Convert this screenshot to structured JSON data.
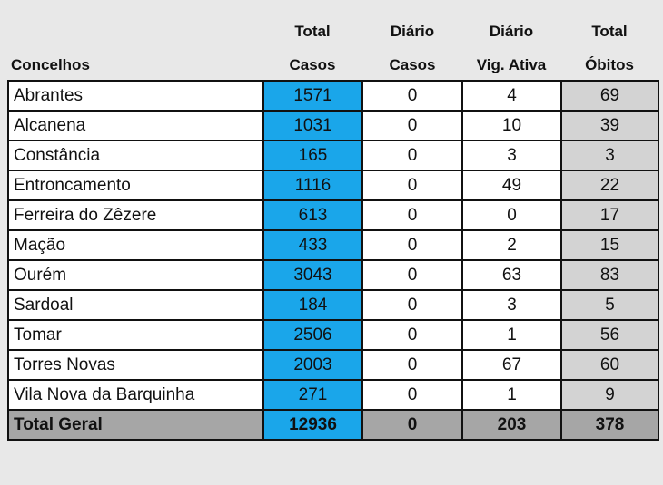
{
  "headers": {
    "concelhos": "Concelhos",
    "total_casos_1": "Total",
    "total_casos_2": "Casos",
    "diario_casos_1": "Diário",
    "diario_casos_2": "Casos",
    "diario_vig_1": "Diário",
    "diario_vig_2": "Vig. Ativa",
    "total_obitos_1": "Total",
    "total_obitos_2": "Óbitos"
  },
  "rows": [
    {
      "name": "Abrantes",
      "total_casos": "1571",
      "diario_casos": "0",
      "diario_vig": "4",
      "total_obitos": "69"
    },
    {
      "name": "Alcanena",
      "total_casos": "1031",
      "diario_casos": "0",
      "diario_vig": "10",
      "total_obitos": "39"
    },
    {
      "name": "Constância",
      "total_casos": "165",
      "diario_casos": "0",
      "diario_vig": "3",
      "total_obitos": "3"
    },
    {
      "name": "Entroncamento",
      "total_casos": "1116",
      "diario_casos": "0",
      "diario_vig": "49",
      "total_obitos": "22"
    },
    {
      "name": "Ferreira do Zêzere",
      "total_casos": "613",
      "diario_casos": "0",
      "diario_vig": "0",
      "total_obitos": "17"
    },
    {
      "name": "Mação",
      "total_casos": "433",
      "diario_casos": "0",
      "diario_vig": "2",
      "total_obitos": "15"
    },
    {
      "name": "Ourém",
      "total_casos": "3043",
      "diario_casos": "0",
      "diario_vig": "63",
      "total_obitos": "83"
    },
    {
      "name": "Sardoal",
      "total_casos": "184",
      "diario_casos": "0",
      "diario_vig": "3",
      "total_obitos": "5"
    },
    {
      "name": "Tomar",
      "total_casos": "2506",
      "diario_casos": "0",
      "diario_vig": "1",
      "total_obitos": "56"
    },
    {
      "name": "Torres Novas",
      "total_casos": "2003",
      "diario_casos": "0",
      "diario_vig": "67",
      "total_obitos": "60"
    },
    {
      "name": "Vila Nova da Barquinha",
      "total_casos": "271",
      "diario_casos": "0",
      "diario_vig": "1",
      "total_obitos": "9"
    }
  ],
  "total": {
    "name": "Total Geral",
    "total_casos": "12936",
    "diario_casos": "0",
    "diario_vig": "203",
    "total_obitos": "378"
  },
  "colors": {
    "casos": "#1aa6ea",
    "obitos": "#d3d3d3",
    "total_row": "#a6a6a6",
    "background": "#e8e8e8"
  }
}
